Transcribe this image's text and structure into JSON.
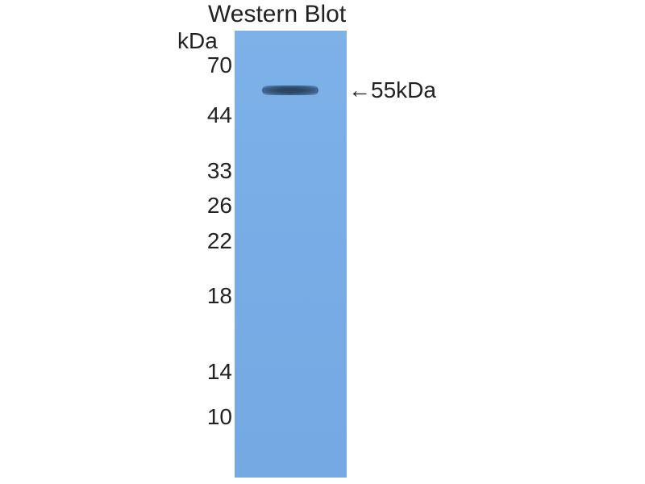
{
  "title": "Western Blot",
  "unit_label": "kDa",
  "markers": [
    "70",
    "44",
    "33",
    "26",
    "22",
    "18",
    "14",
    "10"
  ],
  "band_annotation": "←55kDa",
  "lane_color": "#7eb1e8",
  "band_color": "#2c4560"
}
